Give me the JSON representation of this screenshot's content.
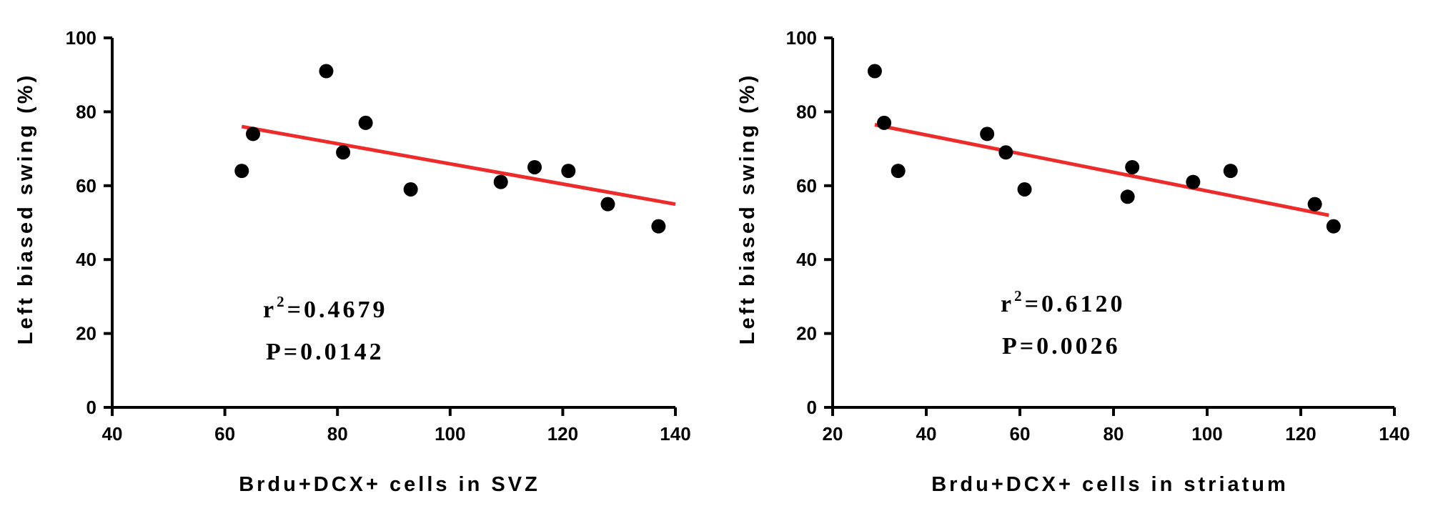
{
  "chart_data": [
    {
      "type": "scatter",
      "xlabel": "Brdu+DCX+ cells in SVZ",
      "ylabel": "Left biased swing (%)",
      "xlim": [
        40,
        140
      ],
      "ylim": [
        0,
        100
      ],
      "xticks": [
        "40",
        "60",
        "80",
        "100",
        "120",
        "140"
      ],
      "yticks": [
        "0",
        "20",
        "40",
        "60",
        "80",
        "100"
      ],
      "points": [
        {
          "x": 63,
          "y": 64
        },
        {
          "x": 65,
          "y": 74
        },
        {
          "x": 78,
          "y": 91
        },
        {
          "x": 81,
          "y": 69
        },
        {
          "x": 85,
          "y": 77
        },
        {
          "x": 93,
          "y": 59
        },
        {
          "x": 109,
          "y": 61
        },
        {
          "x": 115,
          "y": 65
        },
        {
          "x": 121,
          "y": 64
        },
        {
          "x": 128,
          "y": 55
        },
        {
          "x": 137,
          "y": 49
        }
      ],
      "fit_line": {
        "x": [
          63,
          140
        ],
        "y": [
          76,
          55
        ],
        "color": "#ee2b2b"
      },
      "annotation": {
        "r2_prefix": "r",
        "r2_sup": "2",
        "r2_value": "=0.4679",
        "p_text": "P=0.0142"
      }
    },
    {
      "type": "scatter",
      "xlabel": "Brdu+DCX+ cells in striatum",
      "ylabel": "Left biased swing (%)",
      "xlim": [
        20,
        140
      ],
      "ylim": [
        0,
        100
      ],
      "xticks": [
        "20",
        "40",
        "60",
        "80",
        "100",
        "120",
        "140"
      ],
      "yticks": [
        "0",
        "20",
        "40",
        "60",
        "80",
        "100"
      ],
      "points": [
        {
          "x": 29,
          "y": 91
        },
        {
          "x": 31,
          "y": 77
        },
        {
          "x": 34,
          "y": 64
        },
        {
          "x": 53,
          "y": 74
        },
        {
          "x": 57,
          "y": 69
        },
        {
          "x": 61,
          "y": 59
        },
        {
          "x": 83,
          "y": 57
        },
        {
          "x": 84,
          "y": 65
        },
        {
          "x": 97,
          "y": 61
        },
        {
          "x": 105,
          "y": 64
        },
        {
          "x": 123,
          "y": 55
        },
        {
          "x": 127,
          "y": 49
        }
      ],
      "fit_line": {
        "x": [
          29,
          126
        ],
        "y": [
          76.5,
          52
        ],
        "color": "#ee2b2b"
      },
      "annotation": {
        "r2_prefix": "r",
        "r2_sup": "2",
        "r2_value": "=0.6120",
        "p_text": "P=0.0026"
      }
    }
  ]
}
